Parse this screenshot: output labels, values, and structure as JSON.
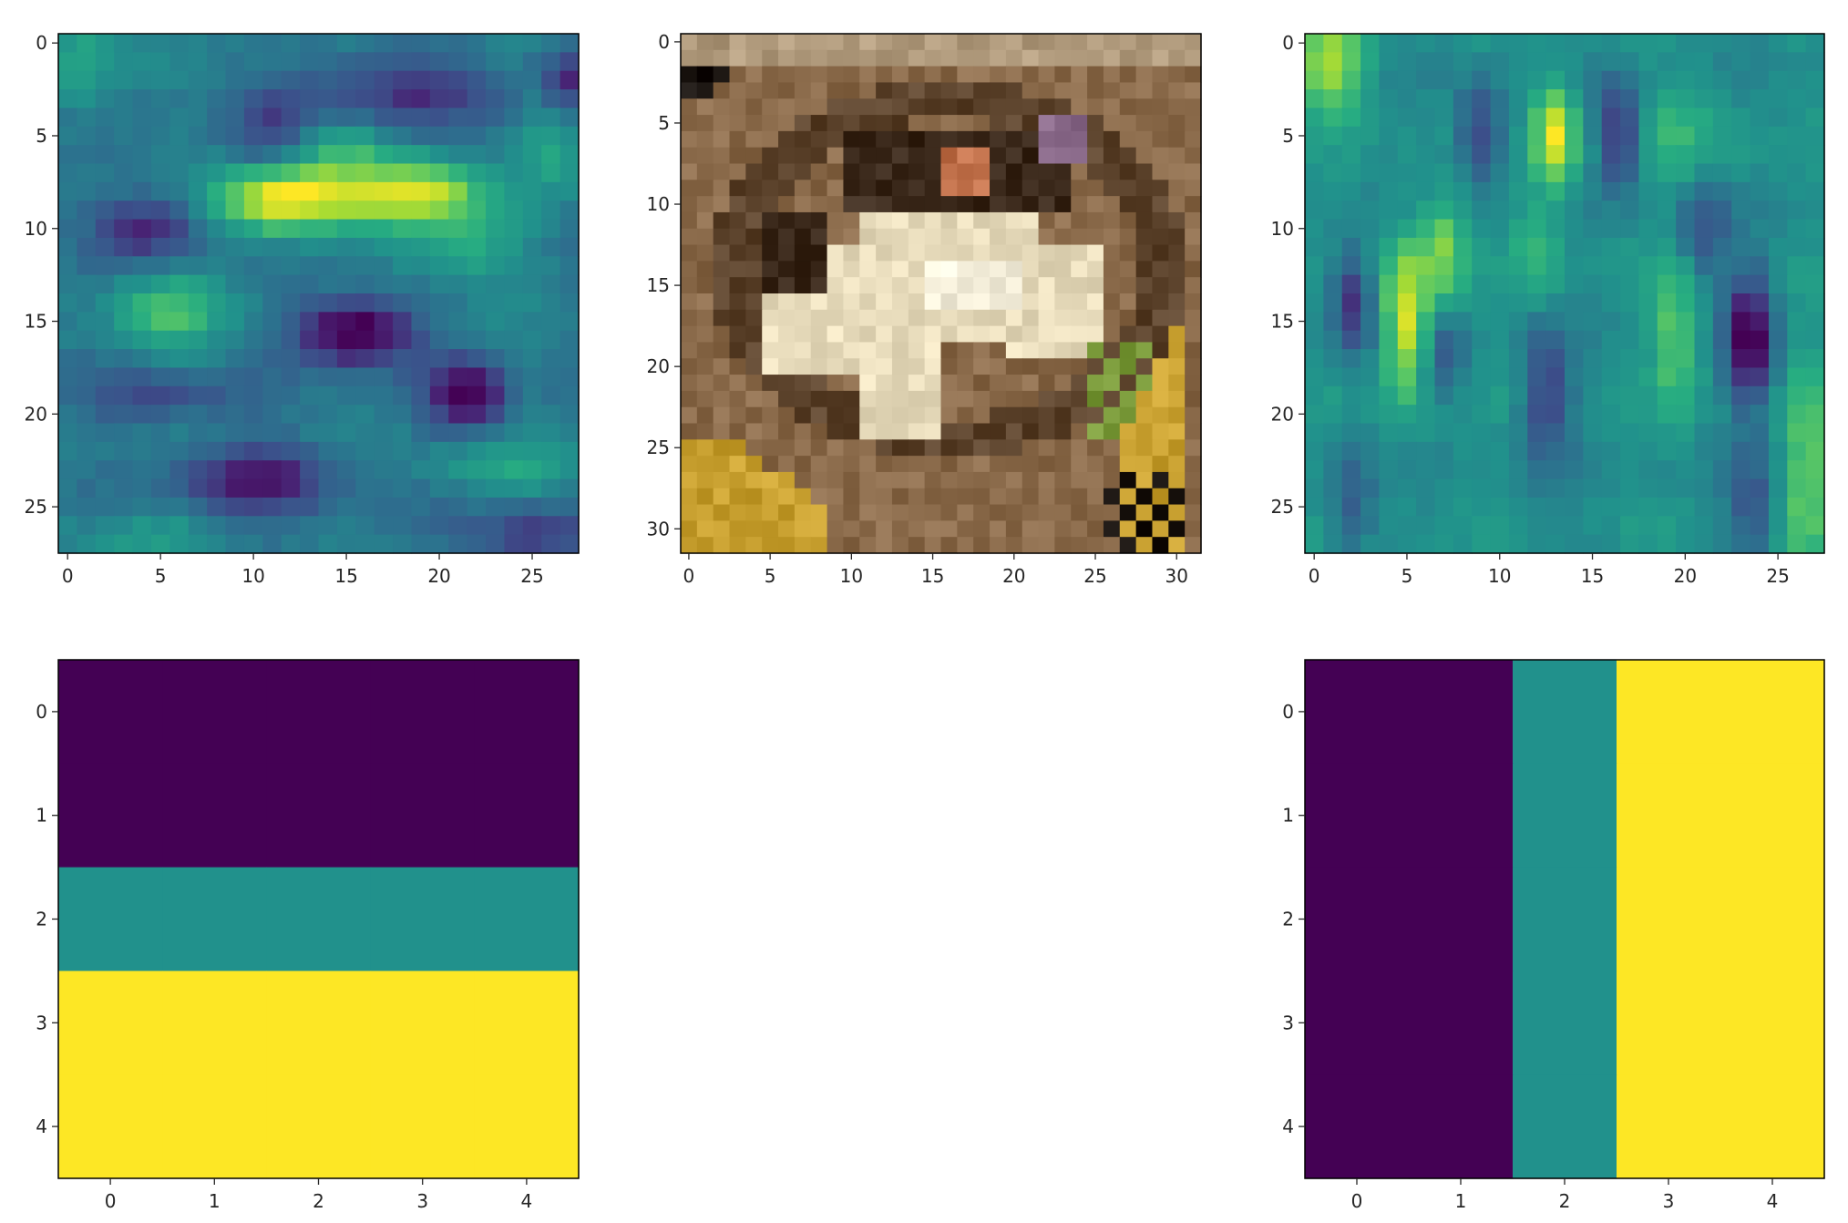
{
  "chart_data": [
    {
      "type": "heatmap",
      "panel": "top-left",
      "rows": 28,
      "cols": 28,
      "colormap": "viridis",
      "values": "28x28 feature map (continuous, not printed)",
      "xlim": [
        -0.5,
        27.5
      ],
      "ylim": [
        27.5,
        -0.5
      ],
      "xticks": [
        0,
        5,
        10,
        15,
        20,
        25
      ],
      "yticks": [
        0,
        5,
        10,
        15,
        20,
        25
      ],
      "features": [
        {
          "r": 8.5,
          "c": 11,
          "v": 1.0,
          "sr": 1.3,
          "sc": 2.2
        },
        {
          "r": 8.5,
          "c": 16,
          "v": 0.7,
          "sr": 1.2,
          "sc": 3.5
        },
        {
          "r": 8,
          "c": 19.5,
          "v": 0.7,
          "sr": 1.2,
          "sc": 2.0
        },
        {
          "r": 6,
          "c": 15,
          "v": 0.45,
          "sr": 1.3,
          "sc": 2.5
        },
        {
          "r": 11,
          "c": 21,
          "v": 0.45,
          "sr": 1.3,
          "sc": 2.5
        },
        {
          "r": 14.5,
          "c": 5.5,
          "v": 0.55,
          "sr": 1.5,
          "sc": 2.2
        },
        {
          "r": 5,
          "c": 26,
          "v": 0.4,
          "sr": 2.0,
          "sc": 1.2
        },
        {
          "r": 23,
          "c": 24,
          "v": 0.35,
          "sr": 1.0,
          "sc": 3.0
        },
        {
          "r": 26.5,
          "c": 4,
          "v": 0.3,
          "sr": 1.0,
          "sc": 3.0
        },
        {
          "r": 1,
          "c": 1,
          "v": 0.35,
          "sr": 2.0,
          "sc": 1.5
        },
        {
          "r": 15.5,
          "c": 15.5,
          "v": -1.0,
          "sr": 1.3,
          "sc": 2.2
        },
        {
          "r": 19,
          "c": 21.5,
          "v": -0.85,
          "sr": 1.3,
          "sc": 1.5
        },
        {
          "r": 23.5,
          "c": 10,
          "v": -0.7,
          "sr": 1.3,
          "sc": 3.0
        },
        {
          "r": 10,
          "c": 4.5,
          "v": -0.55,
          "sr": 1.3,
          "sc": 2.0
        },
        {
          "r": 2.5,
          "c": 18,
          "v": -0.5,
          "sr": 1.5,
          "sc": 4.0
        },
        {
          "r": 2,
          "c": 27,
          "v": -0.6,
          "sr": 1.3,
          "sc": 1.2
        },
        {
          "r": 26.5,
          "c": 25,
          "v": -0.5,
          "sr": 1.0,
          "sc": 2.5
        },
        {
          "r": 19,
          "c": 5,
          "v": -0.35,
          "sr": 1.0,
          "sc": 3.0
        },
        {
          "r": 5,
          "c": 11,
          "v": -0.4,
          "sr": 1.5,
          "sc": 1.5
        }
      ]
    },
    {
      "type": "image",
      "panel": "top-middle",
      "rows": 32,
      "cols": 32,
      "colormap": "rgb",
      "values": "32x32 RGB photo of a frog (not printed)",
      "xlim": [
        -0.5,
        31.5
      ],
      "ylim": [
        31.5,
        -0.5
      ],
      "xticks": [
        0,
        5,
        10,
        15,
        20,
        25,
        30
      ],
      "yticks": [
        0,
        5,
        10,
        15,
        20,
        25,
        30
      ]
    },
    {
      "type": "heatmap",
      "panel": "top-right",
      "rows": 28,
      "cols": 28,
      "colormap": "viridis",
      "values": "28x28 feature map (continuous, not printed)",
      "xlim": [
        -0.5,
        27.5
      ],
      "ylim": [
        27.5,
        -0.5
      ],
      "xticks": [
        0,
        5,
        10,
        15,
        20,
        25
      ],
      "yticks": [
        0,
        5,
        10,
        15,
        20,
        25
      ],
      "features": [
        {
          "r": 15,
          "c": 5,
          "v": 1.0,
          "sr": 3.0,
          "sc": 0.9
        },
        {
          "r": 11,
          "c": 7,
          "v": 0.6,
          "sr": 2.0,
          "sc": 0.9
        },
        {
          "r": 5,
          "c": 13,
          "v": 1.0,
          "sr": 2.0,
          "sc": 0.8
        },
        {
          "r": 1,
          "c": 1,
          "v": 0.8,
          "sr": 2.0,
          "sc": 1.3
        },
        {
          "r": 16,
          "c": 19.5,
          "v": 0.55,
          "sr": 2.5,
          "sc": 0.9
        },
        {
          "r": 23,
          "c": 26.5,
          "v": 0.55,
          "sr": 4.0,
          "sc": 0.9
        },
        {
          "r": 11,
          "c": 12,
          "v": 0.35,
          "sr": 2.0,
          "sc": 1.0
        },
        {
          "r": 5,
          "c": 20,
          "v": 0.3,
          "sr": 2.0,
          "sc": 2.0
        },
        {
          "r": 16,
          "c": 23.5,
          "v": -1.0,
          "sr": 2.5,
          "sc": 0.9
        },
        {
          "r": 5,
          "c": 16.5,
          "v": -0.8,
          "sr": 2.0,
          "sc": 0.8
        },
        {
          "r": 14,
          "c": 2,
          "v": -0.7,
          "sr": 2.0,
          "sc": 0.8
        },
        {
          "r": 5,
          "c": 9,
          "v": -0.6,
          "sr": 2.0,
          "sc": 0.9
        },
        {
          "r": 19,
          "c": 12.5,
          "v": -0.6,
          "sr": 2.5,
          "sc": 0.9
        },
        {
          "r": 10,
          "c": 21,
          "v": -0.45,
          "sr": 2.0,
          "sc": 0.9
        },
        {
          "r": 17,
          "c": 7,
          "v": -0.45,
          "sr": 1.5,
          "sc": 0.9
        },
        {
          "r": 25,
          "c": 23.5,
          "v": -0.45,
          "sr": 2.0,
          "sc": 0.8
        },
        {
          "r": 25,
          "c": 2,
          "v": -0.4,
          "sr": 2.0,
          "sc": 0.8
        }
      ]
    },
    {
      "type": "heatmap",
      "panel": "bottom-left",
      "rows": 5,
      "cols": 5,
      "colormap": "viridis",
      "values": [
        [
          0,
          0,
          0,
          0,
          0
        ],
        [
          0,
          0,
          0,
          0,
          0
        ],
        [
          1,
          1,
          1,
          1,
          1
        ],
        [
          2,
          2,
          2,
          2,
          2
        ],
        [
          2,
          2,
          2,
          2,
          2
        ]
      ],
      "vmin": 0,
      "vmax": 2,
      "xlim": [
        -0.5,
        4.5
      ],
      "ylim": [
        4.5,
        -0.5
      ],
      "xticks": [
        0,
        1,
        2,
        3,
        4
      ],
      "yticks": [
        0,
        1,
        2,
        3,
        4
      ]
    },
    {
      "type": "heatmap",
      "panel": "bottom-right",
      "rows": 5,
      "cols": 5,
      "colormap": "viridis",
      "values": [
        [
          0,
          0,
          1,
          2,
          2
        ],
        [
          0,
          0,
          1,
          2,
          2
        ],
        [
          0,
          0,
          1,
          2,
          2
        ],
        [
          0,
          0,
          1,
          2,
          2
        ],
        [
          0,
          0,
          1,
          2,
          2
        ]
      ],
      "vmin": 0,
      "vmax": 2,
      "xlim": [
        -0.5,
        4.5
      ],
      "ylim": [
        4.5,
        -0.5
      ],
      "xticks": [
        0,
        1,
        2,
        3,
        4
      ],
      "yticks": [
        0,
        1,
        2,
        3,
        4
      ]
    }
  ],
  "colors": {
    "viridis_low": "#440154",
    "viridis_mid": "#21908d",
    "viridis_high": "#fde725",
    "ink": "#262626"
  },
  "frog_palette": {
    "ground": "#8a6a4a",
    "ground_dark": "#5c432c",
    "body": "#e8dcbc",
    "body_bright": "#f6f0dc",
    "shadow": "#3a281a",
    "corner_dark": "#1a1410",
    "leaf_yellow": "#c8a030",
    "leaf_green": "#7a9a3a",
    "head_orange": "#c0704a",
    "eye_purple": "#8a6a8a",
    "border_light": "#b09a7c"
  }
}
